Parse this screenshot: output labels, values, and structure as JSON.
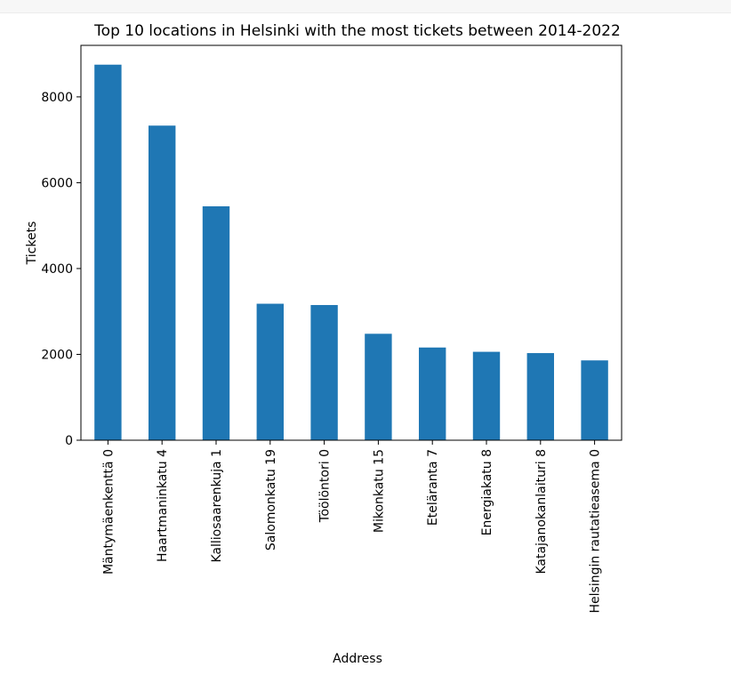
{
  "chart_data": {
    "type": "bar",
    "title": "Top 10 locations in Helsinki with the most tickets between 2014-2022",
    "xlabel": "Address",
    "ylabel": "Tickets",
    "categories": [
      "Mäntymäenkenttä 0",
      "Haartmaninkatu 4",
      "Kalliosaarenkuja 1",
      "Salomonkatu 19",
      "Töölöntori 0",
      "Mikonkatu 15",
      "Eteläranta 7",
      "Energiakatu 8",
      "Katajanokanlaituri 8",
      "Helsingin rautatieasema 0"
    ],
    "values": [
      8750,
      7330,
      5450,
      3180,
      3150,
      2480,
      2160,
      2060,
      2030,
      1860
    ],
    "ylim": [
      0,
      9200
    ],
    "yticks": [
      0,
      2000,
      4000,
      6000,
      8000
    ],
    "ytick_labels": [
      "0",
      "2000",
      "4000",
      "6000",
      "8000"
    ],
    "grid": false,
    "bar_color": "#1f77b4"
  }
}
